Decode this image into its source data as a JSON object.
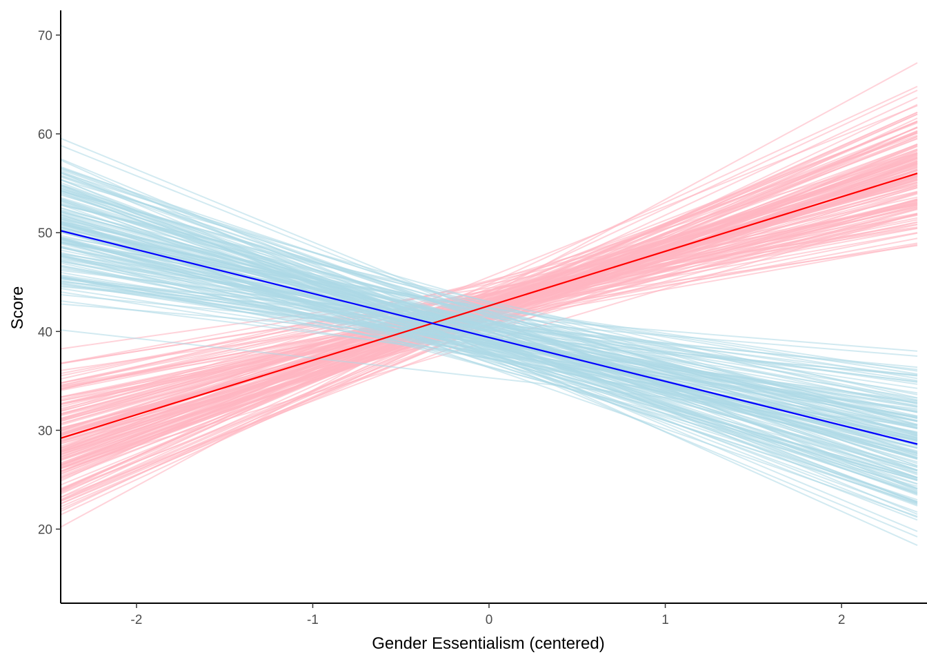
{
  "chart_data": {
    "type": "line",
    "title": "",
    "xlabel": "Gender Essentialism (centered)",
    "ylabel": "Score",
    "xlim": [
      -2.43,
      2.43
    ],
    "ylim": [
      12.5,
      72.5
    ],
    "x_ticks": [
      "-2",
      "-1",
      "0",
      "1",
      "2"
    ],
    "y_ticks": [
      "20",
      "30",
      "40",
      "50",
      "60",
      "70"
    ],
    "grid": false,
    "legend": "none",
    "colors": {
      "pink_sample_lines": "#FFB6C1",
      "blue_sample_lines": "#ADD8E6",
      "red_mean_line": "#FF0000",
      "blue_mean_line": "#0000FF",
      "axis": "#000000",
      "tick_text": "#4d4d4d"
    },
    "series": [
      {
        "kind": "mean",
        "color": "red",
        "x": [
          -2.43,
          2.43
        ],
        "y": [
          29.2,
          56.0
        ]
      },
      {
        "kind": "mean",
        "color": "blue",
        "x": [
          -2.43,
          2.43
        ],
        "y": [
          50.2,
          28.6
        ]
      }
    ],
    "sample_lines": {
      "pink_count": 160,
      "blue_count": 160,
      "pink_y_range_at_left": [
        14.0,
        41.0
      ],
      "pink_y_range_at_right": [
        44.0,
        68.0
      ],
      "blue_y_range_at_left": [
        38.0,
        64.5
      ],
      "blue_y_range_at_right": [
        16.0,
        44.0
      ]
    }
  }
}
